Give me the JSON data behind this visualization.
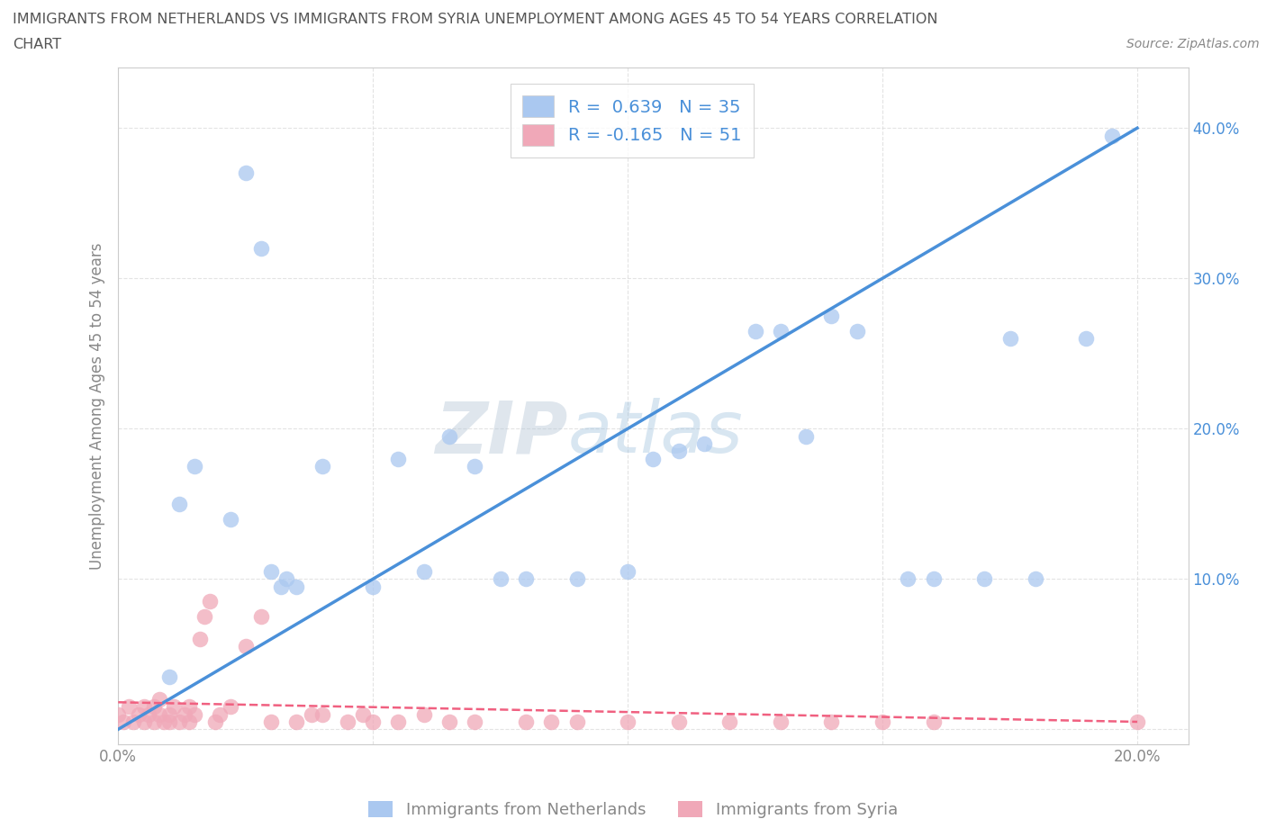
{
  "title_line1": "IMMIGRANTS FROM NETHERLANDS VS IMMIGRANTS FROM SYRIA UNEMPLOYMENT AMONG AGES 45 TO 54 YEARS CORRELATION",
  "title_line2": "CHART",
  "source": "Source: ZipAtlas.com",
  "ylabel": "Unemployment Among Ages 45 to 54 years",
  "watermark_zip": "ZIP",
  "watermark_atlas": "atlas",
  "legend_netherlands": "R =  0.639   N = 35",
  "legend_syria": "R = -0.165   N = 51",
  "legend_label_netherlands": "Immigrants from Netherlands",
  "legend_label_syria": "Immigrants from Syria",
  "color_netherlands": "#aac8f0",
  "color_syria": "#f0a8b8",
  "color_netherlands_line": "#4a90d9",
  "color_syria_line": "#f06080",
  "nl_line_x": [
    0.0,
    0.2
  ],
  "nl_line_y": [
    0.0,
    0.4
  ],
  "sy_line_x": [
    0.0,
    0.2
  ],
  "sy_line_y": [
    0.018,
    0.005
  ],
  "xlim": [
    0.0,
    0.21
  ],
  "ylim": [
    -0.01,
    0.44
  ],
  "xticks": [
    0.0,
    0.05,
    0.1,
    0.15,
    0.2
  ],
  "yticks": [
    0.0,
    0.1,
    0.2,
    0.3,
    0.4
  ],
  "netherlands_x": [
    0.01,
    0.012,
    0.025,
    0.028,
    0.03,
    0.032,
    0.033,
    0.035,
    0.04,
    0.05,
    0.06,
    0.065,
    0.07,
    0.075,
    0.08,
    0.09,
    0.1,
    0.105,
    0.11,
    0.115,
    0.125,
    0.13,
    0.135,
    0.14,
    0.015,
    0.022,
    0.055,
    0.18,
    0.19,
    0.155,
    0.16,
    0.17,
    0.175,
    0.145,
    0.195
  ],
  "netherlands_y": [
    0.035,
    0.15,
    0.37,
    0.32,
    0.105,
    0.095,
    0.1,
    0.095,
    0.175,
    0.095,
    0.105,
    0.195,
    0.175,
    0.1,
    0.1,
    0.1,
    0.105,
    0.18,
    0.185,
    0.19,
    0.265,
    0.265,
    0.195,
    0.275,
    0.175,
    0.14,
    0.18,
    0.1,
    0.26,
    0.1,
    0.1,
    0.1,
    0.26,
    0.265,
    0.395
  ],
  "syria_x": [
    0.0,
    0.001,
    0.002,
    0.003,
    0.004,
    0.005,
    0.005,
    0.006,
    0.007,
    0.007,
    0.008,
    0.008,
    0.009,
    0.01,
    0.01,
    0.011,
    0.012,
    0.013,
    0.014,
    0.014,
    0.015,
    0.016,
    0.017,
    0.018,
    0.019,
    0.02,
    0.022,
    0.025,
    0.028,
    0.03,
    0.035,
    0.038,
    0.04,
    0.045,
    0.048,
    0.05,
    0.055,
    0.06,
    0.065,
    0.07,
    0.08,
    0.085,
    0.09,
    0.1,
    0.11,
    0.12,
    0.13,
    0.14,
    0.15,
    0.16,
    0.2
  ],
  "syria_y": [
    0.01,
    0.005,
    0.015,
    0.005,
    0.01,
    0.005,
    0.015,
    0.01,
    0.005,
    0.015,
    0.01,
    0.02,
    0.005,
    0.005,
    0.01,
    0.015,
    0.005,
    0.01,
    0.005,
    0.015,
    0.01,
    0.06,
    0.075,
    0.085,
    0.005,
    0.01,
    0.015,
    0.055,
    0.075,
    0.005,
    0.005,
    0.01,
    0.01,
    0.005,
    0.01,
    0.005,
    0.005,
    0.01,
    0.005,
    0.005,
    0.005,
    0.005,
    0.005,
    0.005,
    0.005,
    0.005,
    0.005,
    0.005,
    0.005,
    0.005,
    0.005
  ],
  "background_color": "#ffffff",
  "grid_color": "#dddddd",
  "title_color": "#555555",
  "tick_color": "#888888",
  "axis_color": "#cccccc"
}
